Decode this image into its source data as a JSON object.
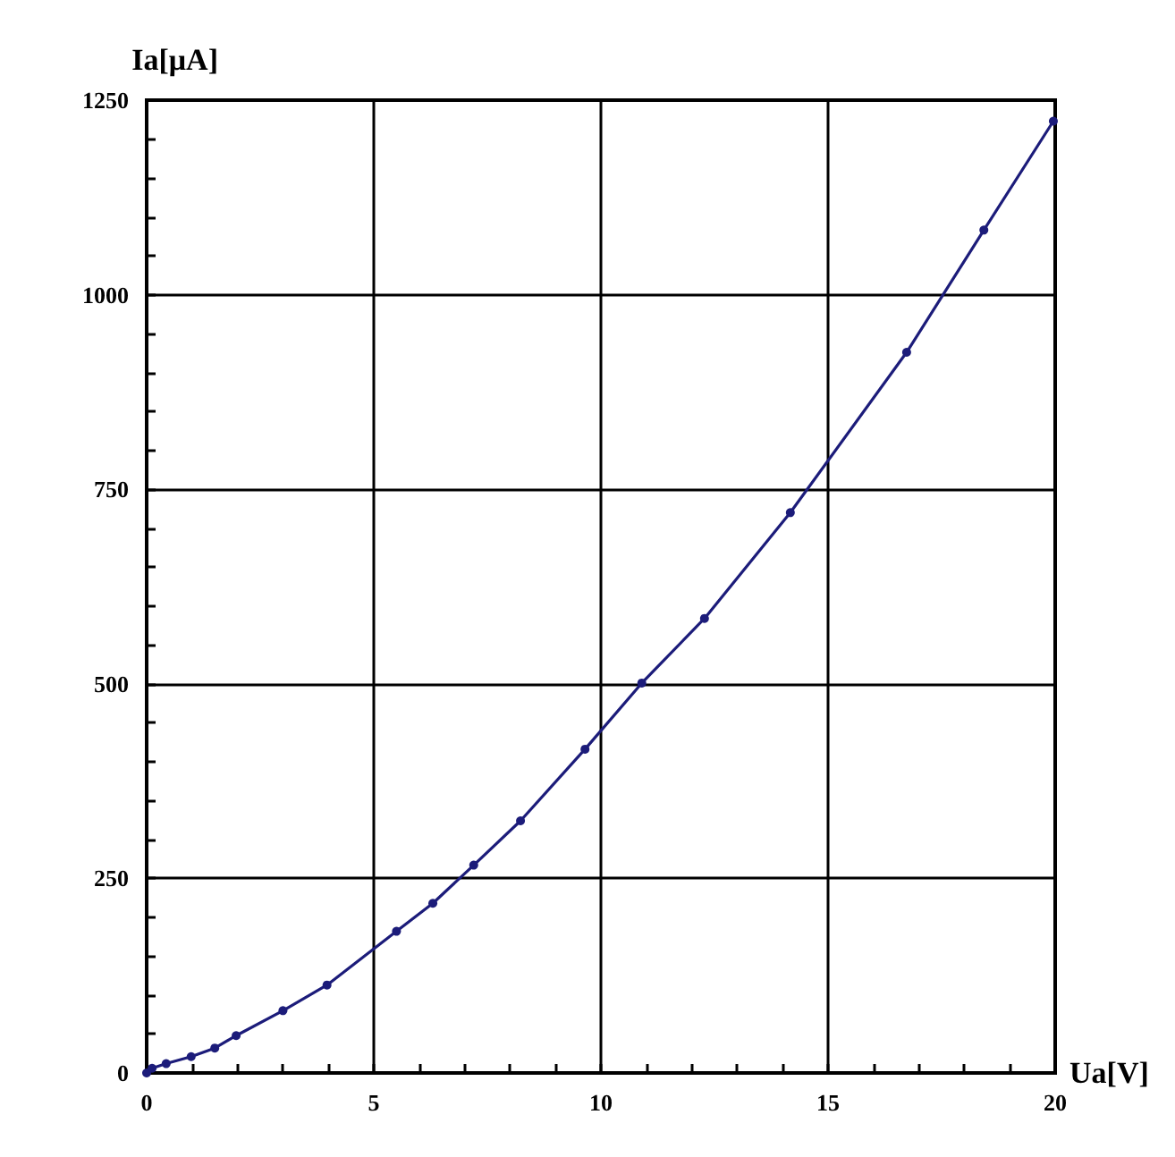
{
  "chart_data": {
    "type": "line",
    "xlabel": "Ua[V]",
    "ylabel": "Ia[μA]",
    "x": [
      0,
      0.12,
      0.43,
      0.98,
      1.5,
      1.97,
      3.0,
      3.97,
      5.5,
      6.3,
      7.2,
      8.23,
      9.65,
      10.9,
      12.28,
      14.17,
      16.73,
      18.43,
      19.96
    ],
    "series": [
      {
        "color": "#1c1c7a",
        "values": [
          0,
          6,
          12,
          21,
          32,
          48,
          80,
          113,
          182,
          218,
          267,
          324,
          416,
          501,
          584,
          720,
          926,
          1083,
          1223
        ]
      }
    ],
    "xlim": [
      0,
      20
    ],
    "xticks": [
      0,
      {
        "value": 1,
        "label": null
      },
      {
        "value": 2,
        "label": null
      },
      {
        "value": 3,
        "label": null
      },
      {
        "value": 4,
        "label": null
      },
      5,
      {
        "value": 6,
        "label": null
      },
      {
        "value": 7,
        "label": null
      },
      {
        "value": 8,
        "label": null
      },
      {
        "value": 9,
        "label": null
      },
      10,
      {
        "value": 11,
        "label": null
      },
      {
        "value": 12,
        "label": null
      },
      {
        "value": 13,
        "label": null
      },
      {
        "value": 14,
        "label": null
      },
      15,
      {
        "value": 16,
        "label": null
      },
      {
        "value": 17,
        "label": null
      },
      {
        "value": 18,
        "label": null
      },
      {
        "value": 19,
        "label": null
      },
      20
    ],
    "ylim": [
      0,
      1250
    ],
    "yticks": [
      0,
      {
        "value": 50,
        "label": null
      },
      {
        "value": 100,
        "label": null
      },
      {
        "value": 150,
        "label": null
      },
      {
        "value": 200,
        "label": null
      },
      250,
      {
        "value": 300,
        "label": null
      },
      {
        "value": 350,
        "label": null
      },
      {
        "value": 400,
        "label": null
      },
      {
        "value": 450,
        "label": null
      },
      500,
      {
        "value": 550,
        "label": null
      },
      {
        "value": 600,
        "label": null
      },
      {
        "value": 650,
        "label": null
      },
      {
        "value": 700,
        "label": null
      },
      750,
      {
        "value": 800,
        "label": null
      },
      {
        "value": 850,
        "label": null
      },
      {
        "value": 900,
        "label": null
      },
      {
        "value": 950,
        "label": null
      },
      1000,
      {
        "value": 1050,
        "label": null
      },
      {
        "value": 1100,
        "label": null
      },
      {
        "value": 1150,
        "label": null
      },
      {
        "value": 1200,
        "label": null
      },
      1250
    ],
    "grid": true,
    "marker": "circle",
    "line_style": "solid"
  }
}
